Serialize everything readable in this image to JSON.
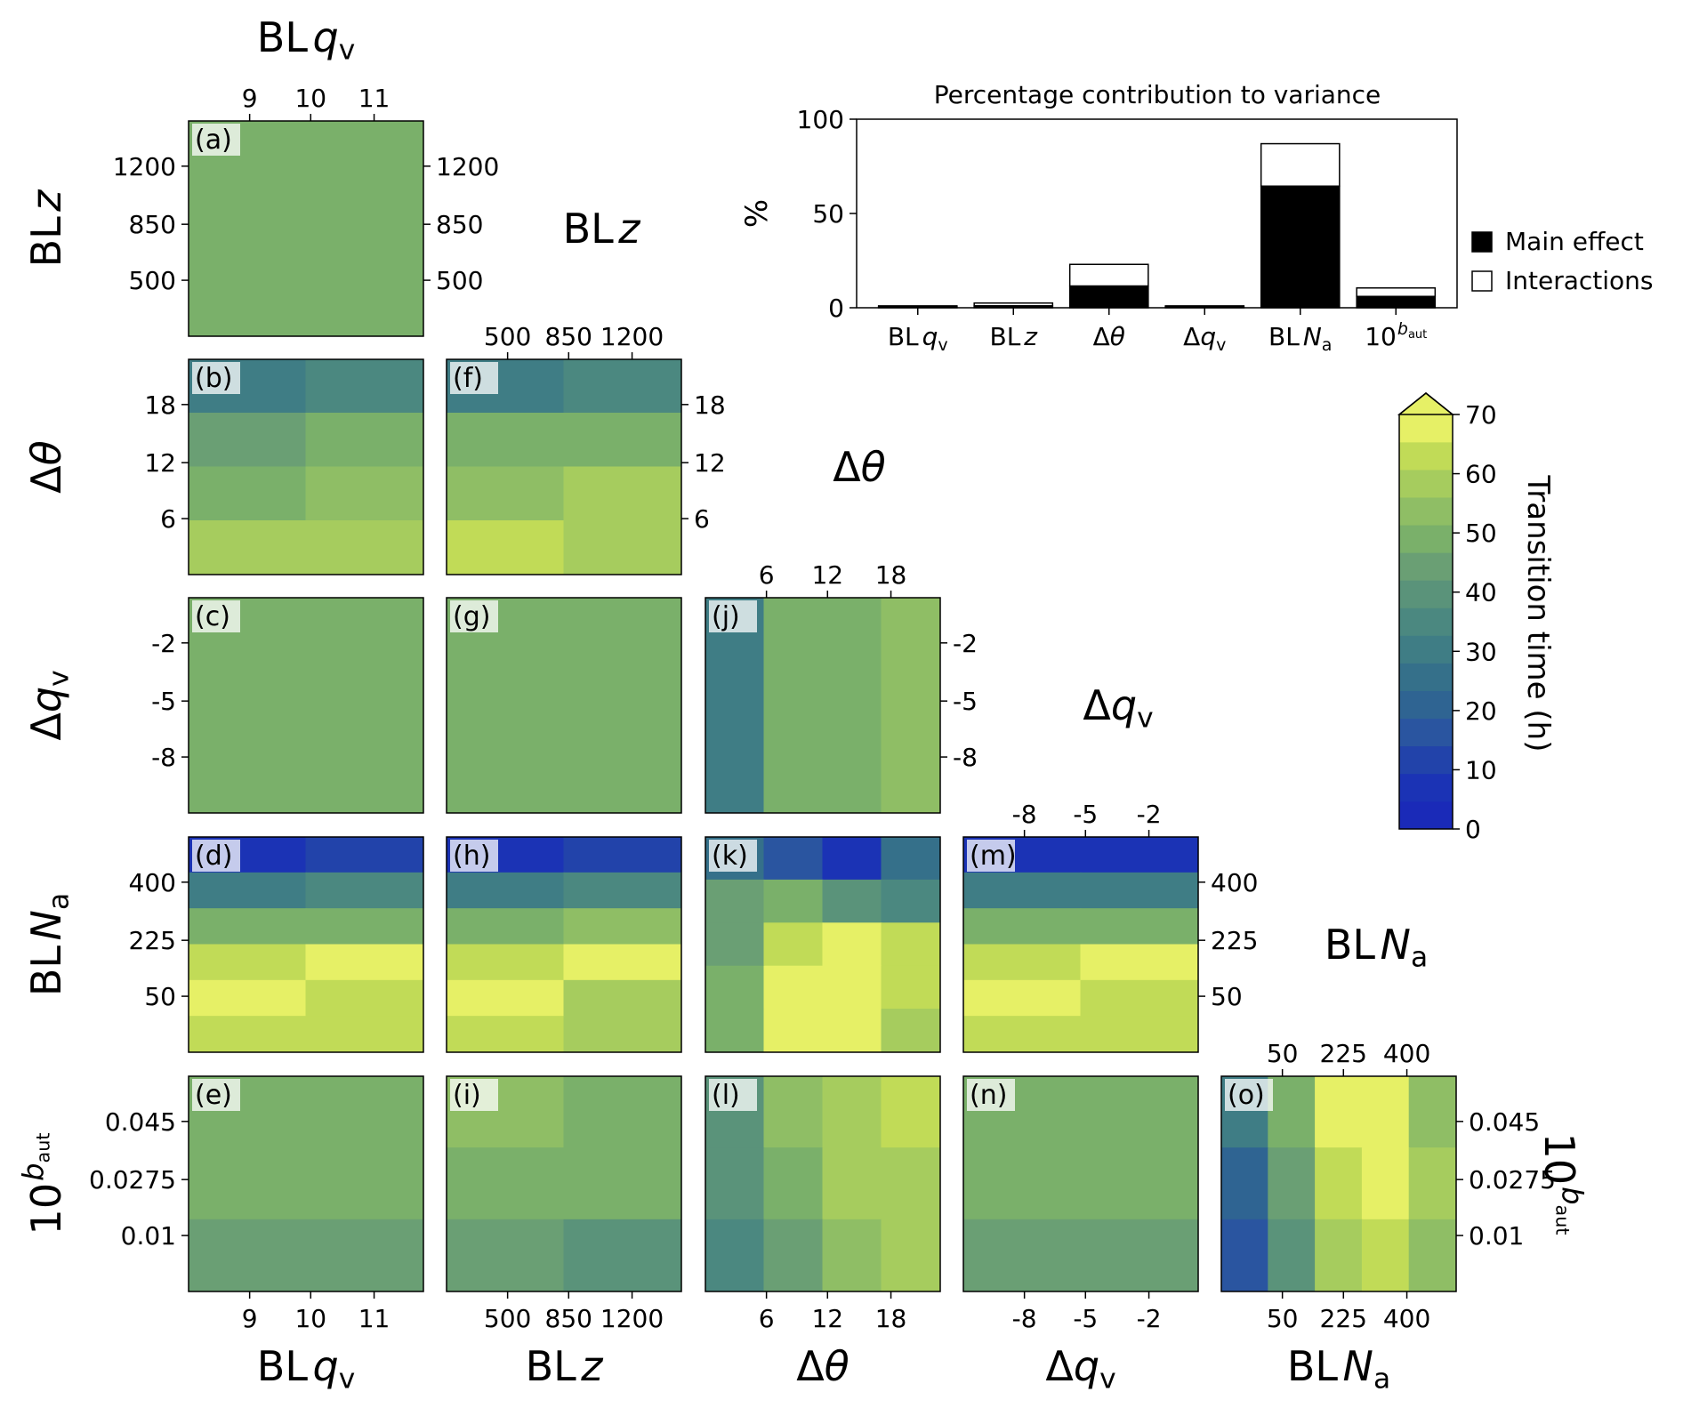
{
  "colors": {
    "main_effect": "#000000",
    "interactions": "#ffffff",
    "colormap_0_to_70": [
      "#1a2ab8",
      "#1b33b5",
      "#2243aa",
      "#2a55a0",
      "#2f6492",
      "#35708a",
      "#3f7d85",
      "#4b8880",
      "#5a937a",
      "#6a9f74",
      "#7ab06a",
      "#8fbe65",
      "#a6cc5e",
      "#c1db57",
      "#e6f066"
    ]
  },
  "params": [
    {
      "key": "qv",
      "pre": "BL",
      "sym": "q",
      "sub": "v",
      "ticks": [
        "9",
        "10",
        "11"
      ]
    },
    {
      "key": "z",
      "pre": "BL",
      "sym": "z",
      "sub": "",
      "ticks": [
        "500",
        "850",
        "1200"
      ]
    },
    {
      "key": "dtheta",
      "pre": "Δ",
      "sym": "θ",
      "sub": "",
      "ticks": [
        "6",
        "12",
        "18"
      ]
    },
    {
      "key": "dqv",
      "pre": "Δ",
      "sym": "q",
      "sub": "v",
      "ticks": [
        "-8",
        "-5",
        "-2"
      ]
    },
    {
      "key": "na",
      "pre": "BL",
      "sym": "N",
      "sub": "a",
      "ticks": [
        "50",
        "225",
        "400"
      ]
    },
    {
      "key": "baut",
      "pre": "10",
      "sym": "b",
      "sub": "aut",
      "ticks": [
        "0.01",
        "0.0275",
        "0.045"
      ]
    }
  ],
  "panels": [
    {
      "letter": "(a)",
      "x": "qv",
      "y": "z"
    },
    {
      "letter": "(b)",
      "x": "qv",
      "y": "dtheta"
    },
    {
      "letter": "(c)",
      "x": "qv",
      "y": "dqv"
    },
    {
      "letter": "(d)",
      "x": "qv",
      "y": "na"
    },
    {
      "letter": "(e)",
      "x": "qv",
      "y": "baut"
    },
    {
      "letter": "(f)",
      "x": "z",
      "y": "dtheta"
    },
    {
      "letter": "(g)",
      "x": "z",
      "y": "dqv"
    },
    {
      "letter": "(h)",
      "x": "z",
      "y": "na"
    },
    {
      "letter": "(i)",
      "x": "z",
      "y": "baut"
    },
    {
      "letter": "(j)",
      "x": "dtheta",
      "y": "dqv"
    },
    {
      "letter": "(k)",
      "x": "dtheta",
      "y": "na"
    },
    {
      "letter": "(l)",
      "x": "dtheta",
      "y": "baut"
    },
    {
      "letter": "(m)",
      "x": "dqv",
      "y": "na"
    },
    {
      "letter": "(n)",
      "x": "dqv",
      "y": "baut"
    },
    {
      "letter": "(o)",
      "x": "na",
      "y": "baut"
    }
  ],
  "colorbar": {
    "label": "Transition time (h)",
    "ticks": [
      "0",
      "10",
      "20",
      "30",
      "40",
      "50",
      "60",
      "70"
    ],
    "min": 0,
    "max": 70,
    "extend": "max"
  },
  "chart_data": {
    "type": "bar",
    "title": "Percentage contribution to variance",
    "ylabel": "%",
    "ylim": [
      0,
      100
    ],
    "yticks": [
      "0",
      "50",
      "100"
    ],
    "categories": [
      {
        "pre": "BL",
        "sym": "q",
        "sub": "v",
        "sup": ""
      },
      {
        "pre": "BL",
        "sym": "z",
        "sub": "",
        "sup": ""
      },
      {
        "pre": "Δ",
        "sym": "θ",
        "sub": "",
        "sup": ""
      },
      {
        "pre": "Δ",
        "sym": "q",
        "sub": "v",
        "sup": ""
      },
      {
        "pre": "BL",
        "sym": "N",
        "sub": "a",
        "sup": ""
      },
      {
        "pre": "10",
        "sym": "",
        "sub": "",
        "sup": "b_aut"
      }
    ],
    "series": [
      {
        "name": "Main effect",
        "values": [
          0.5,
          1.0,
          11.5,
          0.5,
          64.5,
          6.0
        ]
      },
      {
        "name": "Interactions",
        "values": [
          0.5,
          1.5,
          11.5,
          0.5,
          22.5,
          4.5
        ]
      }
    ],
    "legend_position": "right",
    "panel_fields": {
      "(a)": [
        [
          47,
          47
        ],
        [
          47,
          47
        ]
      ],
      "(b)": [
        [
          30,
          34
        ],
        [
          46,
          47
        ],
        [
          51,
          53
        ],
        [
          56,
          56
        ]
      ],
      "(c)": [
        [
          47,
          47
        ],
        [
          47,
          47
        ]
      ],
      "(d)": [
        [
          6,
          10
        ],
        [
          30,
          33
        ],
        [
          50,
          50
        ],
        [
          64,
          66
        ],
        [
          66,
          62
        ],
        [
          62,
          62
        ]
      ],
      "(e)": [
        [
          51,
          51
        ],
        [
          49,
          49
        ],
        [
          45,
          44
        ]
      ],
      "(f)": [
        [
          30,
          33
        ],
        [
          47,
          50
        ],
        [
          53,
          58
        ],
        [
          62,
          60
        ]
      ],
      "(g)": [
        [
          47,
          47
        ],
        [
          47,
          47
        ]
      ],
      "(h)": [
        [
          6,
          12
        ],
        [
          30,
          36
        ],
        [
          50,
          53
        ],
        [
          64,
          66
        ],
        [
          66,
          60
        ],
        [
          62,
          60
        ]
      ],
      "(i)": [
        [
          52,
          50
        ],
        [
          49,
          47
        ],
        [
          45,
          41
        ]
      ],
      "(j)": [
        [
          28,
          47,
          50,
          54
        ],
        [
          28,
          47,
          50,
          54
        ]
      ],
      "(k)": [
        [
          26,
          16,
          8,
          24
        ],
        [
          44,
          48,
          38,
          34
        ],
        [
          42,
          62,
          70,
          64
        ],
        [
          48,
          70,
          70,
          64
        ],
        [
          50,
          66,
          66,
          60
        ]
      ],
      "(l)": [
        [
          40,
          52,
          60,
          64
        ],
        [
          38,
          48,
          56,
          60
        ],
        [
          36,
          46,
          52,
          56
        ]
      ],
      "(m)": [
        [
          6,
          8
        ],
        [
          30,
          32
        ],
        [
          50,
          50
        ],
        [
          64,
          66
        ],
        [
          66,
          62
        ],
        [
          62,
          62
        ]
      ],
      "(n)": [
        [
          51,
          51
        ],
        [
          49,
          49
        ],
        [
          45,
          45
        ]
      ],
      "(o)": [
        [
          28,
          48,
          66,
          70,
          54
        ],
        [
          22,
          42,
          64,
          66,
          56
        ],
        [
          18,
          38,
          58,
          62,
          54
        ]
      ]
    }
  }
}
